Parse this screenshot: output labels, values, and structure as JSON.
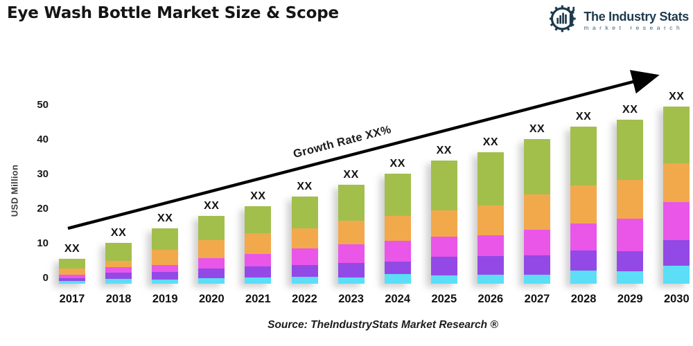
{
  "title": "Eye Wash Bottle Market Size & Scope",
  "logo": {
    "name": "The Industry Stats",
    "subtitle": "market research",
    "color": "#1d3a4d"
  },
  "annotation": {
    "growth_label": "Growth Rate XX%"
  },
  "source": "Source: TheIndustryStats Market Research ®",
  "y_axis": {
    "title": "USD Million",
    "ticks": [
      0,
      10,
      20,
      30,
      40,
      50
    ]
  },
  "bar_value_label": "XX",
  "chart_data": {
    "type": "bar",
    "stacked": true,
    "title": "Eye Wash Bottle Market Size & Scope",
    "xlabel": "",
    "ylabel": "USD Million",
    "ylim": [
      0,
      50
    ],
    "grid": false,
    "legend": "none",
    "categories": [
      "2017",
      "2018",
      "2019",
      "2020",
      "2021",
      "2022",
      "2023",
      "2024",
      "2025",
      "2026",
      "2027",
      "2028",
      "2029",
      "2030"
    ],
    "series": [
      {
        "name": "series-cyan",
        "color": "#5cdef7",
        "values": [
          0.8,
          1.5,
          1.2,
          1.6,
          1.8,
          2.1,
          1.9,
          2.8,
          2.5,
          2.7,
          2.7,
          3.9,
          3.7,
          5.3
        ]
      },
      {
        "name": "series-purple",
        "color": "#9349e6",
        "values": [
          0.9,
          1.7,
          2.2,
          2.9,
          3.2,
          3.3,
          4.1,
          3.7,
          5.3,
          5.3,
          5.5,
          5.7,
          5.8,
          7.3
        ]
      },
      {
        "name": "series-magenta",
        "color": "#e956e8",
        "values": [
          1.0,
          1.7,
          2.0,
          2.9,
          3.7,
          4.8,
          5.5,
          6.0,
          5.9,
          6.0,
          7.5,
          7.8,
          9.3,
          11.0
        ]
      },
      {
        "name": "series-orange",
        "color": "#f2a94c",
        "values": [
          1.7,
          1.8,
          4.5,
          5.3,
          6.0,
          5.9,
          6.7,
          7.1,
          7.5,
          8.7,
          10.1,
          11.1,
          11.3,
          11.3
        ]
      },
      {
        "name": "series-green",
        "color": "#a2bf4c",
        "values": [
          2.9,
          5.1,
          6.2,
          6.9,
          7.8,
          9.2,
          10.5,
          12.2,
          14.5,
          15.3,
          16.0,
          16.9,
          17.3,
          16.3
        ]
      }
    ],
    "totals": [
      7.3,
      11.8,
      16.1,
      19.6,
      22.5,
      25.3,
      28.7,
      31.8,
      35.7,
      38.0,
      41.8,
      45.4,
      47.4,
      51.2
    ],
    "bar_top_labels": [
      "XX",
      "XX",
      "XX",
      "XX",
      "XX",
      "XX",
      "XX",
      "XX",
      "XX",
      "XX",
      "XX",
      "XX",
      "XX",
      "XX"
    ],
    "trend_annotation": "Growth Rate XX%"
  }
}
